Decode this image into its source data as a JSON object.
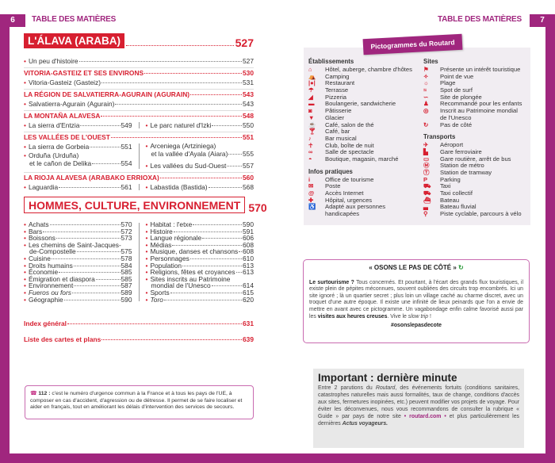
{
  "colors": {
    "frame": "#a0267e",
    "accent_red": "#d71f30",
    "box_border": "#c96bb0"
  },
  "header": {
    "left_page_number": "6",
    "left_title": "TABLE DES MATIÈRES",
    "right_title": "TABLE DES MATIÈRES",
    "right_page_number": "7"
  },
  "toc": {
    "alava": {
      "title": "L'ÁLAVA (ARABA)",
      "page": "527",
      "intro": [
        {
          "label": "Un peu d'histoire",
          "page": "527"
        }
      ],
      "sections": [
        {
          "title": "VITORIA-GASTEIZ ET SES ENVIRONS",
          "page": "530",
          "left": [
            {
              "label": "Vitoria-Gasteiz (Gasteiz)",
              "page": "531"
            }
          ],
          "right": []
        },
        {
          "title": "LA RÉGION DE SALVATIERRA-AGURAIN (AGURAIN)",
          "page": "543",
          "left": [
            {
              "label": "Salvatierra-Agurain (Agurain)",
              "page": "543"
            }
          ],
          "right": []
        },
        {
          "title": "LA MONTAÑA ALAVESA",
          "page": "548",
          "left": [
            {
              "label": "La sierra d'Entzia",
              "page": "549"
            }
          ],
          "right": [
            {
              "label": "Le parc naturel d'Izki",
              "page": "550"
            }
          ]
        },
        {
          "title": "LES VALLÉES DE L'OUEST",
          "page": "551",
          "left": [
            {
              "label": "La sierra de Gorbeia",
              "page": "551"
            },
            {
              "label": "Orduña (Urduña)",
              "cont": "et le cañon de Delika",
              "page": "554"
            }
          ],
          "right": [
            {
              "label": "Arceniega (Artziniega)",
              "cont": "et la vallée d'Ayala (Aiara)",
              "page": "555"
            },
            {
              "label": "Les vallées du Sud-Ouest",
              "page": "557"
            }
          ]
        },
        {
          "title": "LA RIOJA ALAVESA (ARABAKO ERRIOXA)",
          "page": "560",
          "left": [
            {
              "label": "Laguardia",
              "page": "561"
            }
          ],
          "right": [
            {
              "label": "Labastida (Bastida)",
              "page": "568"
            }
          ]
        }
      ]
    },
    "hommes": {
      "title": "HOMMES, CULTURE, ENVIRONNEMENT",
      "page": "570",
      "left": [
        {
          "label": "Achats",
          "page": "570"
        },
        {
          "label": "Bars",
          "page": "572"
        },
        {
          "label": "Boissons",
          "page": "573"
        },
        {
          "label": "Les chemins de Saint-Jacques-",
          "cont": "de-Compostelle",
          "page": "575"
        },
        {
          "label": "Cuisine",
          "page": "578"
        },
        {
          "label": "Droits humains",
          "page": "584"
        },
        {
          "label": "Économie",
          "page": "585"
        },
        {
          "label": "Émigration et diaspora",
          "page": "585"
        },
        {
          "label": "Environnement",
          "page": "587"
        },
        {
          "label": "Fueros ou fors",
          "page": "589"
        },
        {
          "label": "Géographie",
          "page": "590"
        }
      ],
      "right": [
        {
          "label": "Habitat : l'etxe",
          "page": "590"
        },
        {
          "label": "Histoire",
          "page": "591"
        },
        {
          "label": "Langue régionale",
          "page": "606"
        },
        {
          "label": "Médias",
          "page": "608"
        },
        {
          "label": "Musique, danses et chansons",
          "page": "608"
        },
        {
          "label": "Personnages",
          "page": "610"
        },
        {
          "label": "Population",
          "page": "613"
        },
        {
          "label": "Religions, fêtes et croyances",
          "page": "613"
        },
        {
          "label": "Sites inscrits au Patrimoine",
          "cont": "mondial de l'Unesco",
          "page": "614"
        },
        {
          "label": "Sports",
          "page": "615"
        },
        {
          "label": "Toro",
          "page": "620"
        }
      ]
    },
    "closing": [
      {
        "label": "Index général",
        "page": "631"
      },
      {
        "label": "Liste des cartes et plans",
        "page": "639"
      }
    ]
  },
  "emergency": {
    "icon": "phone-icon",
    "number": "112 :",
    "text": "c'est le numéro d'urgence commun à la France et à tous les pays de l'UE, à composer en cas d'accident, d'agression ou de détresse. Il permet de se faire localiser et aider en français, tout en améliorant les délais d'intervention des services de secours."
  },
  "pictograms": {
    "tab": "Pictogrammes du Routard",
    "groups_left": [
      {
        "title": "Établissements",
        "items": [
          [
            "hotel-icon",
            "⌂",
            "Hôtel, auberge, chambre d'hôtes"
          ],
          [
            "camping-icon",
            "⛺",
            "Camping"
          ],
          [
            "restaurant-icon",
            "|●|",
            "Restaurant"
          ],
          [
            "terrace-icon",
            "☂",
            "Terrasse"
          ],
          [
            "pizza-icon",
            "◢",
            "Pizzeria"
          ],
          [
            "bakery-icon",
            "▬",
            "Boulangerie, sandwicherie"
          ],
          [
            "pastry-icon",
            "◙",
            "Pâtisserie"
          ],
          [
            "ice-cream-icon",
            "▼",
            "Glacier"
          ],
          [
            "tea-icon",
            "☕",
            "Café, salon de thé"
          ],
          [
            "bar-icon",
            "🍸︎",
            "Café, bar"
          ],
          [
            "music-icon",
            "♪",
            "Bar musical"
          ],
          [
            "club-icon",
            "☥",
            "Club, boîte de nuit"
          ],
          [
            "theatre-icon",
            "∞",
            "Salle de spectacle"
          ],
          [
            "shop-icon",
            "◓",
            "Boutique, magasin, marché"
          ]
        ]
      },
      {
        "title": "Infos pratiques",
        "items": [
          [
            "tourism-office-icon",
            "i",
            "Office de tourisme"
          ],
          [
            "post-icon",
            "✉",
            "Poste"
          ],
          [
            "internet-icon",
            "@",
            "Accès Internet"
          ],
          [
            "hospital-icon",
            "✚",
            "Hôpital, urgences"
          ],
          [
            "accessible-icon",
            "♿",
            "Adapté aux personnes",
            "handicapées"
          ]
        ]
      }
    ],
    "groups_right": [
      {
        "title": "Sites",
        "items": [
          [
            "landmark-icon",
            "⚑",
            "Présente un intérêt touristique"
          ],
          [
            "viewpoint-icon",
            "✧",
            "Point de vue"
          ],
          [
            "beach-icon",
            "☼",
            "Plage"
          ],
          [
            "surf-icon",
            "≈",
            "Spot de surf"
          ],
          [
            "diving-icon",
            "∽",
            "Site de plongée"
          ],
          [
            "kids-icon",
            "♟",
            "Recommandé pour les enfants"
          ],
          [
            "unesco-icon",
            "◎",
            "Inscrit au Patrimoine mondial",
            "de l'Unesco"
          ],
          [
            "side-step-icon",
            "↻",
            "Pas de côté"
          ]
        ]
      },
      {
        "title": "Transports",
        "items": [
          [
            "airport-icon",
            "✈",
            "Aéroport"
          ],
          [
            "train-icon",
            "▙",
            "Gare ferroviaire"
          ],
          [
            "bus-icon",
            "▭",
            "Gare routière, arrêt de bus"
          ],
          [
            "metro-icon",
            "Ⓜ",
            "Station de métro"
          ],
          [
            "tram-icon",
            "Ⓣ",
            "Station de tramway"
          ],
          [
            "parking-icon",
            "P",
            "Parking"
          ],
          [
            "taxi-icon",
            "⛟",
            "Taxi"
          ],
          [
            "shared-taxi-icon",
            "⛟",
            "Taxi collectif"
          ],
          [
            "boat-icon",
            "⛴",
            "Bateau"
          ],
          [
            "river-boat-icon",
            "▃",
            "Bateau fluvial"
          ],
          [
            "bike-icon",
            "⚲",
            "Piste cyclable, parcours à vélo"
          ]
        ]
      }
    ]
  },
  "osons": {
    "title": "« OSONS LE PAS DE CÔTÉ »",
    "icon": "side-step-icon",
    "lead": "Le surtourisme ?",
    "body1": " Tous concernés. Et pourtant, à l'écart des grands flux touristiques, il existe plein de pépites méconnues, souvent oubliées des circuits trop encombrés. Ici un site ignoré ; là un quartier secret ; plus loin un village caché au charme discret, avec un troquet d'une autre époque. Il existe une infinité de lieux peinards que l'on a envie de mettre en avant avec ce pictogramme. Un vagabondage enfin calme favorisé aussi par les ",
    "bold2": "visites aux heures creuses",
    "body2": ". Vive le ",
    "italic": "slow trip",
    "body3": " !",
    "hashtag": "#osonslepasdecote"
  },
  "important": {
    "title": "Important : dernière minute",
    "t1": "Entre 2 parutions du ",
    "routard": "Routard",
    "t2": ", des événements fortuits (conditions sanitaires, catastrophes naturelles mais aussi formalités, taux de change, conditions d'accès aux sites, fermetures inopinées, etc.) peuvent modifier vos projets de voyage. Pour éviter les déconvenues, nous vous recommandons de consulter la rubrique « Guide » par pays de notre site ",
    "link": "• routard.com •",
    "t3": " et plus particulièrement les dernières ",
    "actus": "Actus voyageurs."
  }
}
